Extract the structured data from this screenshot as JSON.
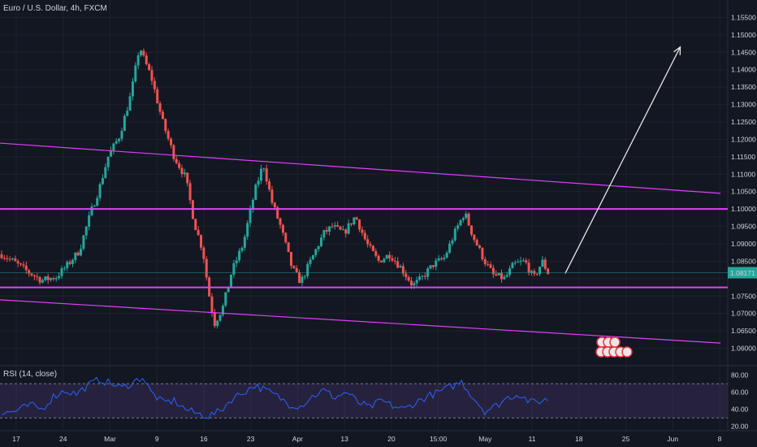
{
  "header": {
    "symbol_title": "Euro / U.S. Dollar, 4h, FXCM"
  },
  "rsi_panel": {
    "title": "RSI (14, close)",
    "upper_band": 70,
    "lower_band": 30,
    "y_ticks": [
      "80.00",
      "60.00",
      "40.00",
      "20.00"
    ]
  },
  "colors": {
    "background": "#131722",
    "up_candle": "#26a69a",
    "down_candle": "#ef5350",
    "trendline": "#e040fb",
    "rsi_line": "#2962ff",
    "rsi_band_fill": "#7e57c2",
    "arrow": "#e8e8e8",
    "price_tag": "#26a69a"
  },
  "chart_data": {
    "type": "candlestick",
    "price_axis": {
      "min": 1.055,
      "max": 1.16,
      "ticks": [
        "1.15500",
        "1.15000",
        "1.14500",
        "1.14000",
        "1.13500",
        "1.13000",
        "1.12500",
        "1.12000",
        "1.11500",
        "1.11000",
        "1.10500",
        "1.10000",
        "1.09500",
        "1.09000",
        "1.08500",
        "1.08000",
        "1.07500",
        "1.07000",
        "1.06500",
        "1.06000"
      ]
    },
    "time_axis": {
      "labels": [
        "17",
        "24",
        "Mar",
        "9",
        "16",
        "23",
        "Apr",
        "13",
        "20",
        "15:00",
        "May",
        "11",
        "18",
        "25",
        "Jun",
        "8"
      ]
    },
    "last_price": "1.08171",
    "price_path": [
      [
        0,
        1.087
      ],
      [
        4,
        1.085
      ],
      [
        9,
        1.082
      ],
      [
        14,
        1.0795
      ],
      [
        19,
        1.0805
      ],
      [
        23,
        1.084
      ],
      [
        27,
        1.088
      ],
      [
        31,
        1.099
      ],
      [
        34,
        1.106
      ],
      [
        37,
        1.115
      ],
      [
        41,
        1.121
      ],
      [
        45,
        1.133
      ],
      [
        48,
        1.147
      ],
      [
        49,
        1.144
      ],
      [
        52,
        1.138
      ],
      [
        56,
        1.125
      ],
      [
        60,
        1.115
      ],
      [
        64,
        1.109
      ],
      [
        67,
        1.096
      ],
      [
        70,
        1.088
      ],
      [
        72,
        1.076
      ],
      [
        74,
        1.067
      ],
      [
        77,
        1.072
      ],
      [
        80,
        1.082
      ],
      [
        84,
        1.09
      ],
      [
        88,
        1.105
      ],
      [
        91,
        1.113
      ],
      [
        94,
        1.102
      ],
      [
        97,
        1.095
      ],
      [
        101,
        1.083
      ],
      [
        104,
        1.079
      ],
      [
        108,
        1.086
      ],
      [
        112,
        1.093
      ],
      [
        115,
        1.095
      ],
      [
        119,
        1.093
      ],
      [
        123,
        1.098
      ],
      [
        127,
        1.09
      ],
      [
        131,
        1.085
      ],
      [
        135,
        1.087
      ],
      [
        139,
        1.083
      ],
      [
        143,
        1.078
      ],
      [
        146,
        1.08
      ],
      [
        150,
        1.084
      ],
      [
        154,
        1.086
      ],
      [
        158,
        1.094
      ],
      [
        161,
        1.099
      ],
      [
        164,
        1.092
      ],
      [
        168,
        1.085
      ],
      [
        171,
        1.081
      ],
      [
        175,
        1.08
      ],
      [
        178,
        1.084
      ],
      [
        182,
        1.085
      ],
      [
        185,
        1.08
      ],
      [
        188,
        1.085
      ],
      [
        190,
        1.0817
      ]
    ],
    "rsi_path": [
      [
        0,
        35
      ],
      [
        5,
        38
      ],
      [
        10,
        45
      ],
      [
        14,
        40
      ],
      [
        18,
        55
      ],
      [
        22,
        62
      ],
      [
        26,
        58
      ],
      [
        30,
        68
      ],
      [
        34,
        75
      ],
      [
        38,
        70
      ],
      [
        42,
        65
      ],
      [
        46,
        72
      ],
      [
        49,
        78
      ],
      [
        52,
        60
      ],
      [
        56,
        48
      ],
      [
        60,
        50
      ],
      [
        64,
        40
      ],
      [
        68,
        35
      ],
      [
        72,
        32
      ],
      [
        76,
        38
      ],
      [
        80,
        52
      ],
      [
        84,
        60
      ],
      [
        88,
        68
      ],
      [
        92,
        62
      ],
      [
        96,
        55
      ],
      [
        100,
        46
      ],
      [
        104,
        44
      ],
      [
        108,
        55
      ],
      [
        112,
        62
      ],
      [
        116,
        54
      ],
      [
        120,
        60
      ],
      [
        124,
        48
      ],
      [
        128,
        42
      ],
      [
        132,
        50
      ],
      [
        136,
        44
      ],
      [
        140,
        40
      ],
      [
        144,
        48
      ],
      [
        148,
        55
      ],
      [
        152,
        60
      ],
      [
        156,
        66
      ],
      [
        160,
        72
      ],
      [
        164,
        54
      ],
      [
        168,
        38
      ],
      [
        172,
        44
      ],
      [
        176,
        54
      ],
      [
        180,
        58
      ],
      [
        184,
        48
      ],
      [
        188,
        50
      ],
      [
        190,
        52
      ]
    ],
    "horizontal_lines": [
      1.1,
      1.0775
    ],
    "trendlines": [
      {
        "from": [
          -2,
          1.119
        ],
        "to": [
          250,
          1.1045
        ]
      },
      {
        "from": [
          -2,
          1.074
        ],
        "to": [
          250,
          1.0615
        ]
      }
    ],
    "projection_arrow": {
      "from": [
        196,
        1.0815
      ],
      "to": [
        236,
        1.1465
      ]
    }
  }
}
